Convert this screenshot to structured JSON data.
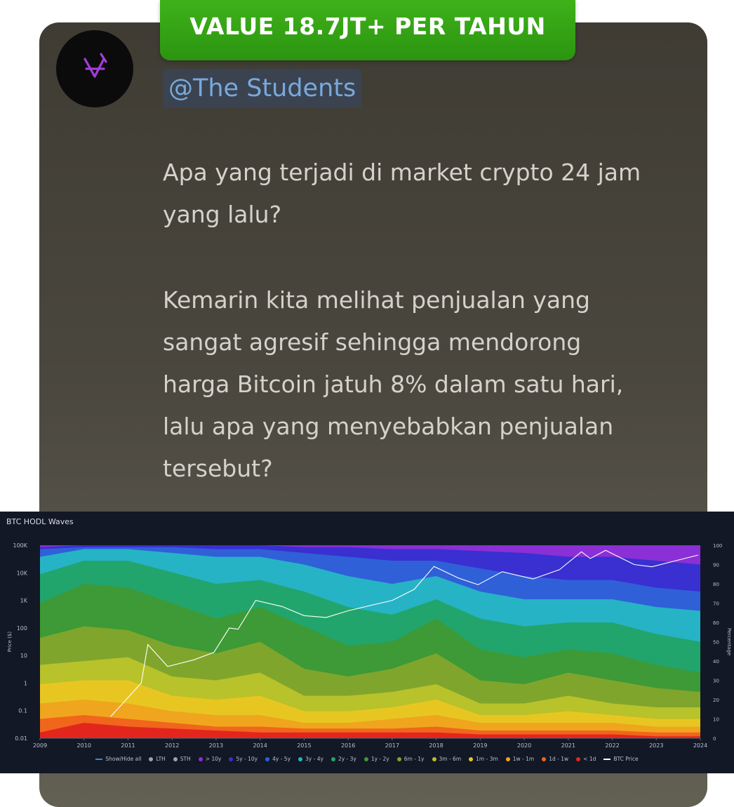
{
  "badge": {
    "label": "VALUE 18.7JT+ PER TAHUN"
  },
  "post": {
    "handle": "@The Students",
    "paragraph1": "Apa yang terjadi di market crypto 24 jam yang lalu?",
    "paragraph2": "Kemarin kita melihat penjualan yang sangat agresif sehingga mendorong harga Bitcoin jatuh 8% dalam satu hari, lalu apa yang menyebabkan penjualan tersebut?"
  },
  "avatar_icon": "crossed-v-logo-icon",
  "chart_data": {
    "type": "area",
    "title": "BTC HODL Waves",
    "ylabel_left": "Price ($)",
    "ylabel_right": "Percentage",
    "x_ticks": [
      "2009",
      "2010",
      "2011",
      "2012",
      "2013",
      "2014",
      "2015",
      "2016",
      "2017",
      "2018",
      "2019",
      "2020",
      "2021",
      "2022",
      "2023",
      "2024"
    ],
    "y_left_ticks": [
      "0.01",
      "0.1",
      "1",
      "10",
      "100",
      "1K",
      "10K",
      "100K"
    ],
    "y_right_ticks": [
      "0",
      "10",
      "20",
      "30",
      "40",
      "50",
      "60",
      "70",
      "80",
      "90",
      "100"
    ],
    "legend": [
      {
        "label": "Show/Hide all",
        "color": "#3e86d6",
        "marker": "line"
      },
      {
        "label": "LTH",
        "color": "#9aa3b0",
        "marker": "dot"
      },
      {
        "label": "STH",
        "color": "#9aa3b0",
        "marker": "dot"
      },
      {
        "label": "> 10y",
        "color": "#8b2fd6",
        "marker": "dot"
      },
      {
        "label": "5y - 10y",
        "color": "#3a2fd0",
        "marker": "dot"
      },
      {
        "label": "4y - 5y",
        "color": "#2f60d8",
        "marker": "dot"
      },
      {
        "label": "3y - 4y",
        "color": "#26b3c6",
        "marker": "dot"
      },
      {
        "label": "2y - 3y",
        "color": "#22a56c",
        "marker": "dot"
      },
      {
        "label": "1y - 2y",
        "color": "#3d9a36",
        "marker": "dot"
      },
      {
        "label": "6m - 1y",
        "color": "#80a52c",
        "marker": "dot"
      },
      {
        "label": "3m - 6m",
        "color": "#b8c22a",
        "marker": "dot"
      },
      {
        "label": "1m - 3m",
        "color": "#e8c621",
        "marker": "dot"
      },
      {
        "label": "1w - 1m",
        "color": "#f0a51e",
        "marker": "dot"
      },
      {
        "label": "1d - 1w",
        "color": "#f0661c",
        "marker": "dot"
      },
      {
        "label": "< 1d",
        "color": "#e3261d",
        "marker": "dot"
      },
      {
        "label": "BTC Price",
        "color": "#ffffff",
        "marker": "line"
      }
    ],
    "bands_bottom_to_top": [
      {
        "name": "< 1d",
        "color": "#e3261d",
        "pct": [
          3,
          8,
          6,
          5,
          4,
          3,
          3,
          3,
          3,
          3,
          2,
          2,
          2,
          2,
          1,
          1
        ]
      },
      {
        "name": "1d - 1w",
        "color": "#f0661c",
        "pct": [
          10,
          12,
          10,
          8,
          6,
          6,
          5,
          5,
          5,
          6,
          4,
          4,
          4,
          4,
          3,
          3
        ]
      },
      {
        "name": "1w - 1m",
        "color": "#f0a51e",
        "pct": [
          18,
          20,
          18,
          14,
          12,
          12,
          8,
          8,
          10,
          12,
          8,
          8,
          8,
          8,
          6,
          6
        ]
      },
      {
        "name": "1m - 3m",
        "color": "#e8c621",
        "pct": [
          28,
          30,
          30,
          22,
          20,
          22,
          14,
          14,
          16,
          20,
          12,
          12,
          14,
          12,
          10,
          10
        ]
      },
      {
        "name": "3m - 6m",
        "color": "#b8c22a",
        "pct": [
          38,
          40,
          42,
          32,
          30,
          34,
          22,
          22,
          24,
          28,
          18,
          18,
          22,
          18,
          16,
          16
        ]
      },
      {
        "name": "6m - 1y",
        "color": "#80a52c",
        "pct": [
          52,
          58,
          56,
          48,
          44,
          50,
          36,
          32,
          36,
          44,
          30,
          28,
          34,
          30,
          26,
          24
        ]
      },
      {
        "name": "1y - 2y",
        "color": "#3d9a36",
        "pct": [
          70,
          80,
          78,
          70,
          62,
          68,
          58,
          48,
          50,
          62,
          46,
          42,
          46,
          44,
          38,
          34
        ]
      },
      {
        "name": "2y - 3y",
        "color": "#22a56c",
        "pct": [
          85,
          92,
          92,
          86,
          80,
          82,
          76,
          68,
          64,
          72,
          62,
          58,
          60,
          60,
          54,
          50
        ]
      },
      {
        "name": "3y - 4y",
        "color": "#26b3c6",
        "pct": [
          94,
          98,
          98,
          96,
          94,
          94,
          90,
          84,
          80,
          84,
          76,
          72,
          72,
          72,
          68,
          66
        ]
      },
      {
        "name": "4y - 5y",
        "color": "#2f60d8",
        "pct": [
          98,
          99,
          99,
          99,
          98,
          98,
          96,
          94,
          92,
          92,
          88,
          84,
          82,
          82,
          78,
          76
        ]
      },
      {
        "name": "5y - 10y",
        "color": "#3a2fd0",
        "pct": [
          99,
          100,
          100,
          100,
          100,
          100,
          99,
          99,
          98,
          98,
          97,
          96,
          94,
          94,
          92,
          90
        ]
      },
      {
        "name": "> 10y",
        "color": "#8b2fd6",
        "pct": [
          100,
          100,
          100,
          100,
          100,
          100,
          100,
          100,
          100,
          100,
          100,
          100,
          100,
          100,
          100,
          100
        ]
      }
    ],
    "btc_price": {
      "x": [
        2010.6,
        2010.9,
        2011.3,
        2011.45,
        2011.9,
        2012.5,
        2012.95,
        2013.3,
        2013.5,
        2013.9,
        2014.5,
        2015.0,
        2015.5,
        2016.0,
        2016.5,
        2017.0,
        2017.5,
        2017.95,
        2018.5,
        2018.95,
        2019.5,
        2020.2,
        2020.8,
        2021.3,
        2021.5,
        2021.85,
        2022.5,
        2022.9,
        2023.5,
        2023.95
      ],
      "y": [
        0.06,
        0.2,
        1,
        25,
        4,
        7,
        13,
        100,
        90,
        1000,
        600,
        280,
        240,
        420,
        650,
        1000,
        2500,
        17000,
        6500,
        3700,
        11000,
        6000,
        13000,
        58000,
        33000,
        65000,
        20000,
        16500,
        29000,
        44000
      ]
    }
  }
}
